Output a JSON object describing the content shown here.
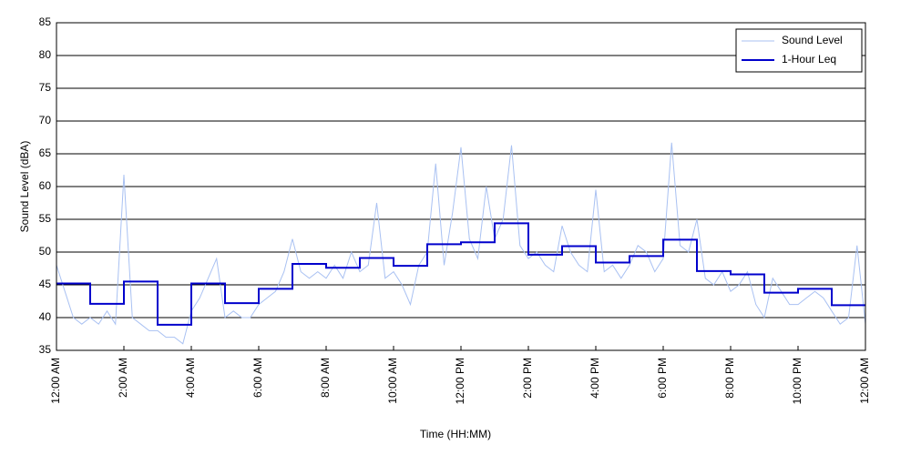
{
  "chart_data": {
    "type": "line",
    "xlabel": "Time (HH:MM)",
    "ylabel": "Sound Level (dBA)",
    "xlim": [
      0,
      24
    ],
    "ylim": [
      35,
      85
    ],
    "xticks": [
      {
        "value": 0,
        "label": "12:00 AM"
      },
      {
        "value": 2,
        "label": "2:00 AM"
      },
      {
        "value": 4,
        "label": "4:00 AM"
      },
      {
        "value": 6,
        "label": "6:00 AM"
      },
      {
        "value": 8,
        "label": "8:00 AM"
      },
      {
        "value": 10,
        "label": "10:00 AM"
      },
      {
        "value": 12,
        "label": "12:00 PM"
      },
      {
        "value": 14,
        "label": "2:00 PM"
      },
      {
        "value": 16,
        "label": "4:00 PM"
      },
      {
        "value": 18,
        "label": "6:00 PM"
      },
      {
        "value": 20,
        "label": "8:00 PM"
      },
      {
        "value": 22,
        "label": "10:00 PM"
      },
      {
        "value": 24,
        "label": "12:00 AM"
      }
    ],
    "yticks": [
      35,
      40,
      45,
      50,
      55,
      60,
      65,
      70,
      75,
      80,
      85
    ],
    "grid": true,
    "legend": "upper right",
    "series": [
      {
        "name": "Sound Level",
        "color": "#a9c1f2",
        "drawstyle": "line",
        "x": [
          0,
          0.25,
          0.5,
          0.75,
          1,
          1.25,
          1.5,
          1.75,
          2,
          2.25,
          2.5,
          2.75,
          3,
          3.25,
          3.5,
          3.75,
          4,
          4.25,
          4.5,
          4.75,
          5,
          5.25,
          5.5,
          5.75,
          6,
          6.25,
          6.5,
          6.75,
          7,
          7.25,
          7.5,
          7.75,
          8,
          8.25,
          8.5,
          8.75,
          9,
          9.25,
          9.5,
          9.75,
          10,
          10.25,
          10.5,
          10.75,
          11,
          11.25,
          11.5,
          11.75,
          12,
          12.25,
          12.5,
          12.75,
          13,
          13.25,
          13.5,
          13.75,
          14,
          14.25,
          14.5,
          14.75,
          15,
          15.25,
          15.5,
          15.75,
          16,
          16.25,
          16.5,
          16.75,
          17,
          17.25,
          17.5,
          17.75,
          18,
          18.25,
          18.5,
          18.75,
          19,
          19.25,
          19.5,
          19.75,
          20,
          20.25,
          20.5,
          20.75,
          21,
          21.25,
          21.5,
          21.75,
          22,
          22.25,
          22.5,
          22.75,
          23,
          23.25,
          23.5,
          23.75,
          24
        ],
        "values": [
          48,
          44,
          40,
          39,
          40,
          39,
          41,
          39,
          61.8,
          40,
          39,
          38,
          38,
          37,
          37,
          36,
          41,
          43,
          46,
          49,
          40,
          41,
          40,
          40,
          42,
          43,
          44,
          47,
          52,
          47,
          46,
          47,
          46,
          48,
          46,
          50,
          47,
          48,
          57.5,
          46,
          47,
          45,
          42,
          48,
          50,
          63.5,
          48,
          56,
          66,
          52,
          49,
          60,
          52,
          55,
          66.3,
          51,
          49,
          50,
          48,
          47,
          54,
          50,
          48,
          47,
          59.5,
          47,
          48,
          46,
          48,
          51,
          50,
          47,
          49,
          66.7,
          51,
          50,
          55,
          46,
          45,
          47,
          44,
          45,
          47,
          42,
          40,
          46,
          44,
          42,
          42,
          43,
          44,
          43,
          41,
          39,
          40,
          51,
          39
        ]
      },
      {
        "name": "1-Hour Leq",
        "color": "#0000cc",
        "drawstyle": "steps-post",
        "x": [
          0,
          1,
          2,
          3,
          4,
          5,
          6,
          7,
          8,
          9,
          10,
          11,
          12,
          13,
          14,
          15,
          16,
          17,
          18,
          19,
          20,
          21,
          22,
          23,
          24
        ],
        "values": [
          45.2,
          42.1,
          45.5,
          38.9,
          45.2,
          42.2,
          44.4,
          48.2,
          47.6,
          49.1,
          47.9,
          51.2,
          51.5,
          54.4,
          49.6,
          50.9,
          48.4,
          49.4,
          51.9,
          47.1,
          46.6,
          43.8,
          44.4,
          41.9,
          41.9
        ]
      }
    ]
  }
}
